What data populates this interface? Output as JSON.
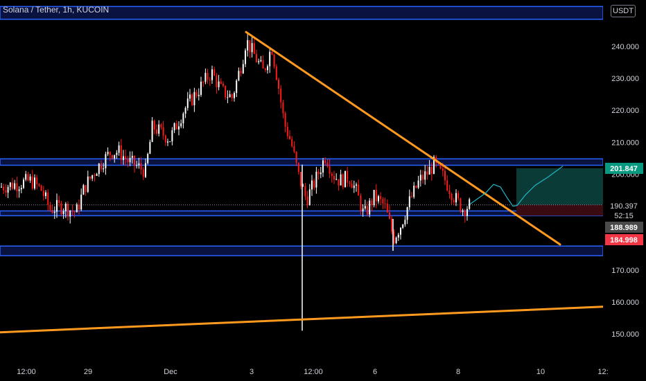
{
  "header": {
    "symbol_title": "Solana / Tether, 1h, KUCOIN",
    "currency_label": "USDT"
  },
  "colors": {
    "background": "#000000",
    "candle_up": "#ffffff",
    "candle_down": "#ff1a1a",
    "zone_fill": "#0a1240",
    "zone_border": "#2962ff",
    "trendline": "#ff9a1f",
    "projection": "#1fb5c9",
    "target_box": "#0b3b36",
    "stop_box": "#3a0b10",
    "axis_text": "#d1d4dc"
  },
  "chart_data": {
    "type": "candlestick",
    "y_axis": {
      "min": 145,
      "max": 253,
      "ticks": [
        "240.000",
        "230.000",
        "220.000",
        "210.000",
        "200.000",
        "170.000",
        "160.000",
        "150.000"
      ]
    },
    "x_axis": {
      "ticks": [
        "12:00",
        "29",
        "Dec",
        "3",
        "12:00",
        "6",
        "8",
        "10",
        "12:"
      ]
    },
    "price_labels": [
      {
        "text": "201.847",
        "value": 201.847,
        "color": "#089981"
      },
      {
        "text": "190.397",
        "value": 190.397,
        "color": "#000000"
      },
      {
        "text": "52:15",
        "value": 188.5,
        "color": "#000000"
      },
      {
        "text": "188.989",
        "value": 188.989,
        "color": "#4a4a4a"
      },
      {
        "text": "184.998",
        "value": 184.998,
        "color": "#f23645"
      }
    ],
    "last_price": 190.397,
    "zones": [
      {
        "low": 248.5,
        "high": 252.5
      },
      {
        "low": 202.8,
        "high": 204.8
      },
      {
        "low": 187.0,
        "high": 188.5
      },
      {
        "low": 174.5,
        "high": 177.5
      }
    ],
    "trendlines": [
      {
        "from": [
          355,
          244.5
        ],
        "to": [
          808,
          178.0
        ]
      },
      {
        "from": [
          0,
          150.5
        ],
        "to": [
          870,
          158.5
        ]
      }
    ],
    "projection_path": [
      [
        678,
        190.6
      ],
      [
        700,
        194
      ],
      [
        712,
        196.8
      ],
      [
        722,
        196.0
      ],
      [
        732,
        192.5
      ],
      [
        740,
        190.0
      ],
      [
        746,
        190.2
      ],
      [
        758,
        193.5
      ],
      [
        772,
        196.5
      ],
      [
        790,
        199
      ],
      [
        812,
        202.5
      ]
    ],
    "target_box": {
      "x_start": 745,
      "x_end": 870,
      "low": 190.4,
      "high": 201.847
    },
    "stop_box": {
      "x_start": 745,
      "x_end": 870,
      "low": 187.0,
      "high": 190.4
    },
    "series_keypoints": [
      [
        0,
        196
      ],
      [
        25,
        197
      ],
      [
        45,
        198
      ],
      [
        60,
        195
      ],
      [
        72,
        189
      ],
      [
        90,
        190
      ],
      [
        110,
        188
      ],
      [
        122,
        196
      ],
      [
        140,
        202
      ],
      [
        160,
        207
      ],
      [
        172,
        207
      ],
      [
        185,
        204
      ],
      [
        210,
        201
      ],
      [
        220,
        215
      ],
      [
        245,
        211
      ],
      [
        265,
        220
      ],
      [
        285,
        226
      ],
      [
        305,
        232
      ],
      [
        320,
        226
      ],
      [
        335,
        224
      ],
      [
        350,
        236
      ],
      [
        355,
        242
      ],
      [
        365,
        238
      ],
      [
        380,
        232
      ],
      [
        392,
        240
      ],
      [
        400,
        230
      ],
      [
        410,
        216
      ],
      [
        420,
        210
      ],
      [
        430,
        200
      ],
      [
        442,
        192
      ],
      [
        455,
        198
      ],
      [
        470,
        206
      ],
      [
        480,
        200
      ],
      [
        490,
        198
      ],
      [
        505,
        199
      ],
      [
        515,
        194
      ],
      [
        525,
        187
      ],
      [
        540,
        193
      ],
      [
        555,
        190
      ],
      [
        568,
        180
      ],
      [
        578,
        184
      ],
      [
        590,
        191
      ],
      [
        605,
        198
      ],
      [
        615,
        200
      ],
      [
        626,
        203
      ],
      [
        640,
        199
      ],
      [
        655,
        193
      ],
      [
        668,
        189
      ],
      [
        678,
        190.4
      ]
    ],
    "wick_events": [
      {
        "x": 436,
        "low": 151,
        "high": 203
      },
      {
        "x": 567,
        "low": 176,
        "high": 186
      }
    ]
  }
}
